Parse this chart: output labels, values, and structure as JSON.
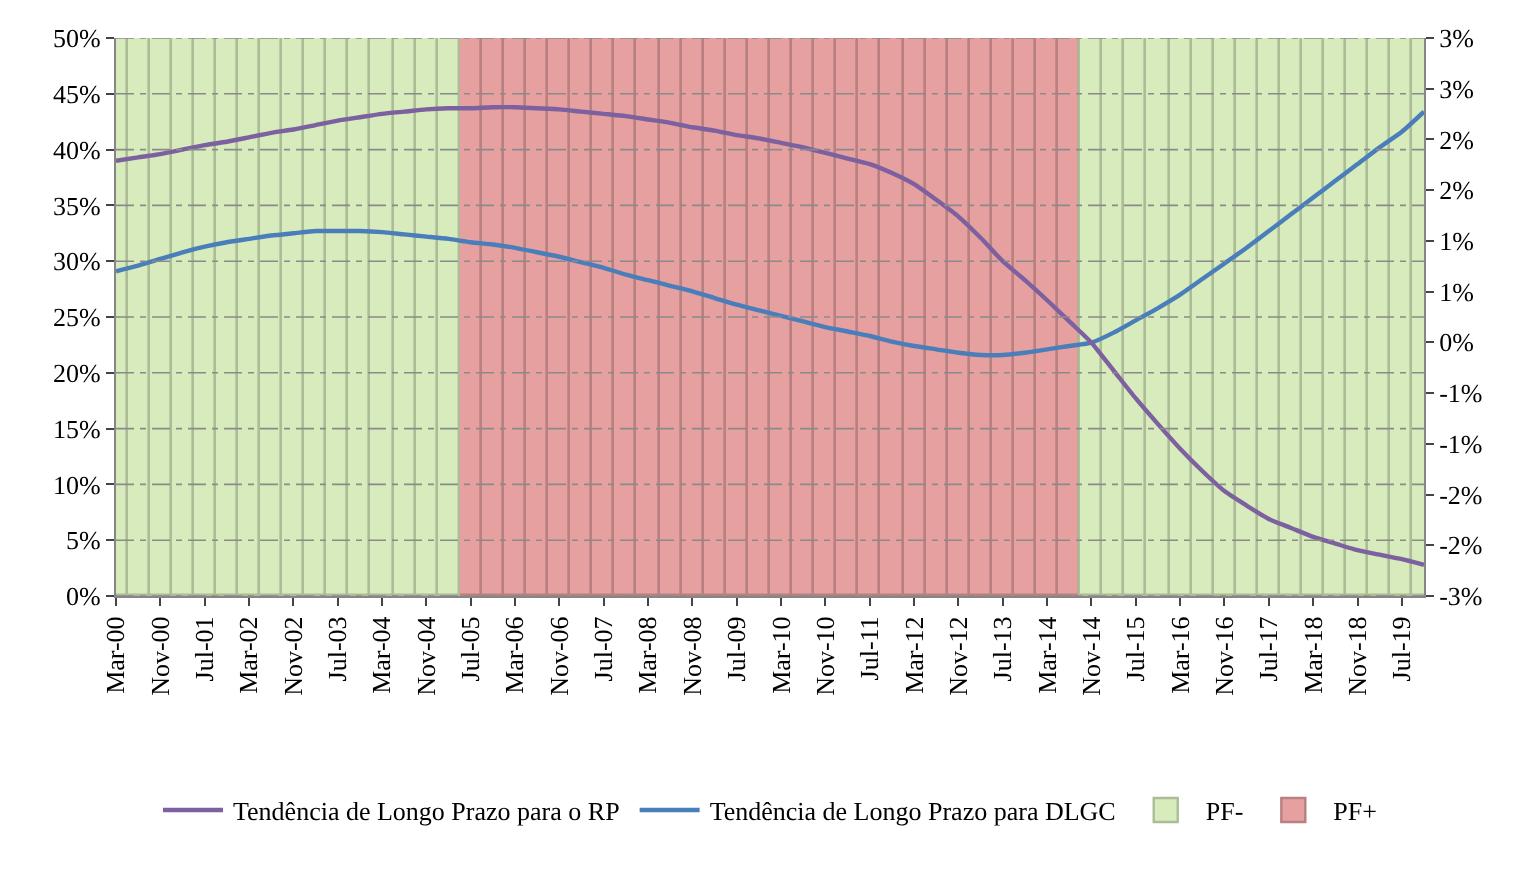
{
  "chart_data": {
    "type": "line",
    "categories": [
      "Mar-00",
      null,
      "Nov-00",
      null,
      "Jul-01",
      null,
      "Mar-02",
      null,
      "Nov-02",
      null,
      "Jul-03",
      null,
      "Mar-04",
      null,
      "Nov-04",
      null,
      "Jul-05",
      null,
      "Mar-06",
      null,
      "Nov-06",
      null,
      "Jul-07",
      null,
      "Mar-08",
      null,
      "Nov-08",
      null,
      "Jul-09",
      null,
      "Mar-10",
      null,
      "Nov-10",
      null,
      "Jul-11",
      null,
      "Mar-12",
      null,
      "Nov-12",
      null,
      "Jul-13",
      null,
      "Mar-14",
      null,
      "Nov-14",
      null,
      "Jul-15",
      null,
      "Mar-16",
      null,
      "Nov-16",
      null,
      "Jul-17",
      null,
      "Mar-18",
      null,
      "Nov-18",
      null,
      "Jul-19",
      null
    ],
    "series": [
      {
        "name": "PF+",
        "type": "bar",
        "color": "#e6a0a0",
        "values": [
          null,
          null,
          null,
          null,
          null,
          null,
          null,
          null,
          null,
          null,
          null,
          null,
          null,
          null,
          null,
          null,
          50,
          50,
          50,
          50,
          50,
          50,
          50,
          50,
          50,
          50,
          50,
          50,
          50,
          50,
          50,
          50,
          50,
          50,
          50,
          50,
          50,
          50,
          50,
          50,
          50,
          50,
          50,
          50,
          null,
          null,
          null,
          null,
          null,
          null,
          null,
          null,
          null,
          null,
          null,
          null,
          null,
          null,
          null,
          null
        ]
      },
      {
        "name": "PF-",
        "type": "bar",
        "color": "#d7ebbd",
        "values": [
          50,
          50,
          50,
          50,
          50,
          50,
          50,
          50,
          50,
          50,
          50,
          50,
          50,
          50,
          50,
          50,
          null,
          null,
          null,
          null,
          null,
          null,
          null,
          null,
          null,
          null,
          null,
          null,
          null,
          null,
          null,
          null,
          null,
          null,
          null,
          null,
          null,
          null,
          null,
          null,
          null,
          null,
          null,
          null,
          50,
          50,
          50,
          50,
          50,
          50,
          50,
          50,
          50,
          50,
          50,
          50,
          50,
          50,
          50,
          50
        ]
      },
      {
        "name": "Tendência de Longo Prazo para DLGC",
        "color": "#4a7ebb",
        "values": [
          29.1,
          29.6,
          30.2,
          30.8,
          31.3,
          31.7,
          32.0,
          32.3,
          32.5,
          32.7,
          32.7,
          32.7,
          32.6,
          32.4,
          32.2,
          32.0,
          31.7,
          31.5,
          31.2,
          30.8,
          30.4,
          29.9,
          29.4,
          28.8,
          28.3,
          27.8,
          27.3,
          26.7,
          26.1,
          25.6,
          25.1,
          24.6,
          24.1,
          23.7,
          23.3,
          22.8,
          22.4,
          22.1,
          21.8,
          21.6,
          21.6,
          21.8,
          22.1,
          22.4,
          22.7,
          23.6,
          24.7,
          25.8,
          27.0,
          28.4,
          29.8,
          31.2,
          32.7,
          34.2,
          35.7,
          37.2,
          38.7,
          40.2,
          41.6,
          43.4
        ]
      },
      {
        "name": "Tendência de Longo Prazo para o RP",
        "color": "#7d60a0",
        "values": [
          39.0,
          39.3,
          39.6,
          40.0,
          40.4,
          40.7,
          41.1,
          41.5,
          41.8,
          42.2,
          42.6,
          42.9,
          43.2,
          43.4,
          43.6,
          43.7,
          43.7,
          43.8,
          43.8,
          43.7,
          43.6,
          43.4,
          43.2,
          43.0,
          42.7,
          42.4,
          42.0,
          41.7,
          41.3,
          41.0,
          40.6,
          40.2,
          39.7,
          39.2,
          38.7,
          37.9,
          36.9,
          35.5,
          34.0,
          32.1,
          30.0,
          28.3,
          26.5,
          24.6,
          22.7,
          20.2,
          17.7,
          15.4,
          13.2,
          11.2,
          9.4,
          8.1,
          6.9,
          6.1,
          5.3,
          4.7,
          4.1,
          3.7,
          3.3,
          2.8
        ]
      }
    ],
    "ylim": [
      0,
      50
    ],
    "yticks": [
      {
        "value": 0,
        "label": "0%"
      },
      {
        "value": 5,
        "label": "5%"
      },
      {
        "value": 10,
        "label": "10%"
      },
      {
        "value": 15,
        "label": "15%"
      },
      {
        "value": 20,
        "label": "20%"
      },
      {
        "value": 25,
        "label": "25%"
      },
      {
        "value": 30,
        "label": "30%"
      },
      {
        "value": 35,
        "label": "35%"
      },
      {
        "value": 40,
        "label": "40%"
      },
      {
        "value": 45,
        "label": "45%"
      },
      {
        "value": 50,
        "label": "50%"
      }
    ],
    "y2lim": [
      -2.5,
      3
    ],
    "y2ticks": [
      {
        "value": -2.5,
        "label": "-3%"
      },
      {
        "value": -2,
        "label": "-2%"
      },
      {
        "value": -1.5,
        "label": "-2%"
      },
      {
        "value": -1,
        "label": "-1%"
      },
      {
        "value": -0.5,
        "label": "-1%"
      },
      {
        "value": 0,
        "label": "0%"
      },
      {
        "value": 0.5,
        "label": "1%"
      },
      {
        "value": 1,
        "label": "1%"
      },
      {
        "value": 1.5,
        "label": "2%"
      },
      {
        "value": 2,
        "label": "2%"
      },
      {
        "value": 2.5,
        "label": "3%"
      },
      {
        "value": 3,
        "label": "3%"
      }
    ],
    "grid": "y",
    "legend": "bottom",
    "marker": "none",
    "line_style": "solid"
  }
}
